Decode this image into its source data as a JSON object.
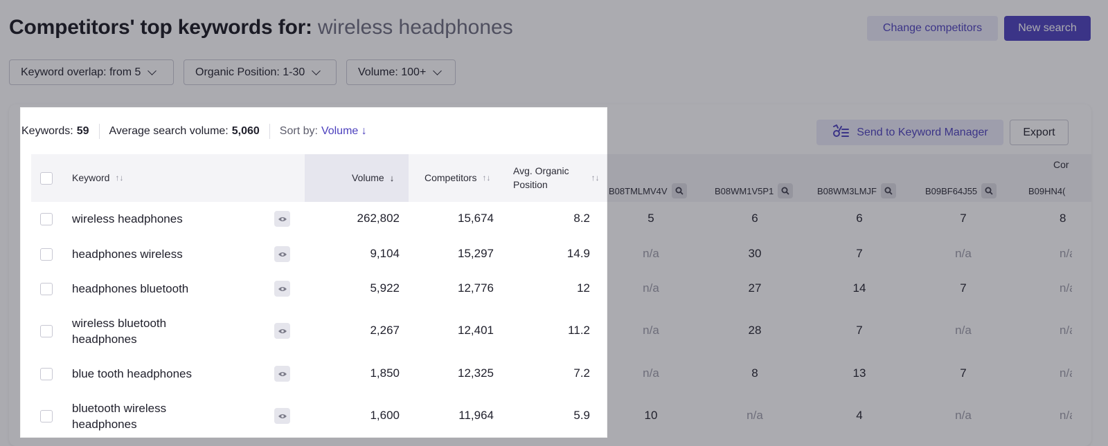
{
  "header": {
    "title": "Competitors' top keywords for:",
    "query": "wireless headphones",
    "change_competitors": "Change competitors",
    "new_search": "New search"
  },
  "filters": [
    {
      "label": "Keyword overlap: from 5"
    },
    {
      "label": "Organic Position: 1-30"
    },
    {
      "label": "Volume: 100+"
    }
  ],
  "stats": {
    "keywords_label": "Keywords:",
    "keywords_value": "59",
    "avg_label": "Average search volume:",
    "avg_value": "5,060",
    "sort_label": "Sort by:",
    "sort_value": "Volume ↓"
  },
  "actions": {
    "send": "Send to Keyword Manager",
    "export": "Export"
  },
  "table": {
    "headers": {
      "keyword": "Keyword",
      "volume": "Volume",
      "competitors": "Competitors",
      "avg_position_line1": "Avg. Organic",
      "avg_position_line2": "Position",
      "competitor_group": "Cor"
    },
    "competitor_cols": [
      "B08TMLMV4V",
      "B08WM1V5P1",
      "B08WM3LMJF",
      "B09BF64J55",
      "B09HN4("
    ],
    "rows": [
      {
        "keyword_line1": "wireless headphones",
        "keyword_line2": "",
        "volume": "262,802",
        "competitors": "15,674",
        "avg_position": "8.2",
        "c1": "5",
        "c2": "6",
        "c3": "6",
        "c4": "7",
        "c5": "8"
      },
      {
        "keyword_line1": "headphones wireless",
        "keyword_line2": "",
        "volume": "9,104",
        "competitors": "15,297",
        "avg_position": "14.9",
        "c1": "n/a",
        "c2": "30",
        "c3": "7",
        "c4": "n/a",
        "c5": "n/a"
      },
      {
        "keyword_line1": "headphones bluetooth",
        "keyword_line2": "",
        "volume": "5,922",
        "competitors": "12,776",
        "avg_position": "12",
        "c1": "n/a",
        "c2": "27",
        "c3": "14",
        "c4": "7",
        "c5": "n/a"
      },
      {
        "keyword_line1": "wireless bluetooth",
        "keyword_line2": "headphones",
        "volume": "2,267",
        "competitors": "12,401",
        "avg_position": "11.2",
        "c1": "n/a",
        "c2": "28",
        "c3": "7",
        "c4": "n/a",
        "c5": "n/a"
      },
      {
        "keyword_line1": "blue tooth headphones",
        "keyword_line2": "",
        "volume": "1,850",
        "competitors": "12,325",
        "avg_position": "7.2",
        "c1": "n/a",
        "c2": "8",
        "c3": "13",
        "c4": "7",
        "c5": "n/a"
      },
      {
        "keyword_line1": "bluetooth wireless",
        "keyword_line2": "headphones",
        "volume": "1,600",
        "competitors": "11,964",
        "avg_position": "5.9",
        "c1": "10",
        "c2": "n/a",
        "c3": "4",
        "c4": "n/a",
        "c5": "n/a"
      }
    ]
  },
  "colors": {
    "accent": "#4b3fbd",
    "accent_light": "#ebeaf8",
    "na_text": "#9c9ca8",
    "overlay": "rgba(34,34,48,0.38)"
  }
}
